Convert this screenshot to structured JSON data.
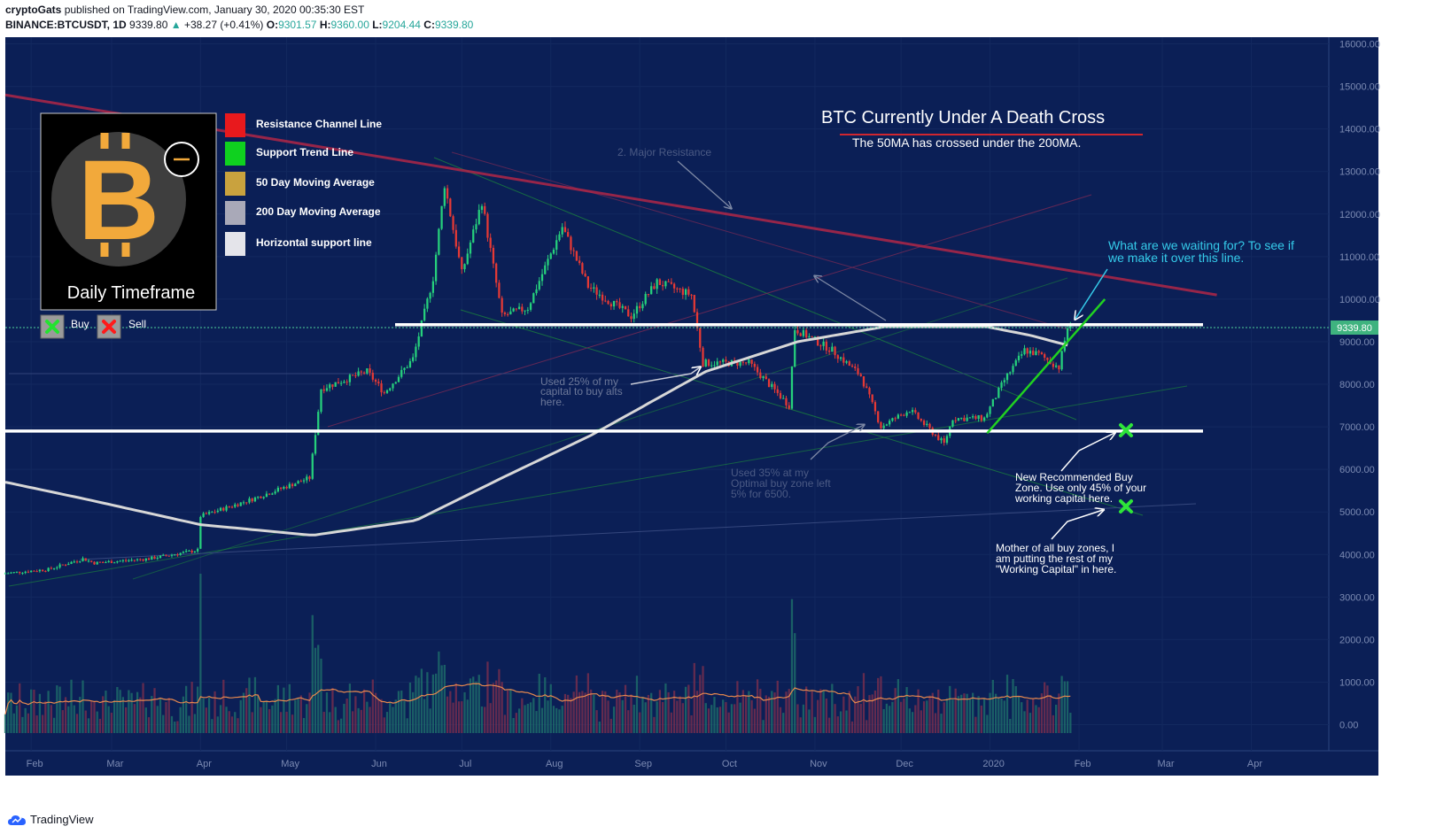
{
  "header": {
    "author": "cryptoGats",
    "published": "published on TradingView.com, January 30, 2020 00:35:30 EST",
    "symbol": "BINANCE:BTCUSDT, 1D",
    "last": "9339.80",
    "change": "+38.27 (+0.41%)",
    "o_label": "O:",
    "o": "9301.57",
    "h_label": "H:",
    "h": "9360.00",
    "l_label": "L:",
    "l": "9204.44",
    "c_label": "C:",
    "c": "9339.80"
  },
  "footer": {
    "brand": "TradingView"
  },
  "colors": {
    "background": "#0b1f56",
    "up": "#26d07c",
    "down": "#e53935",
    "ma50": "#c8a03a",
    "ma200": "#d8d8d8",
    "resistance": "#c0284a",
    "support": "#22cc22"
  },
  "legend_box": {
    "timeframe": "Daily Timeframe",
    "buy": "Buy",
    "sell": "Sell",
    "items": [
      {
        "label": "Resistance Channel Line",
        "color": "#e8191d"
      },
      {
        "label": "Support Trend Line",
        "color": "#0fd11f"
      },
      {
        "label": "50 Day Moving Average",
        "color": "#c9a23e"
      },
      {
        "label": "200 Day Moving Average",
        "color": "#a9a9b8"
      },
      {
        "label": "Horizontal support line",
        "color": "#e4e4ea"
      }
    ]
  },
  "annotations": {
    "title": "BTC Currently Under A Death Cross",
    "subtitle": "The 50MA has crossed under the 200MA.",
    "major_resistance": "2. Major Resistance",
    "waiting_1": "What are we waiting for? To see if",
    "waiting_2": "we make it over this line.",
    "used25_1": "Used 25% of my",
    "used25_2": "capital to buy alts",
    "used25_3": "here.",
    "used35_1": "Used 35% at my",
    "used35_2": "Optimal buy zone left",
    "used35_3": "5% for 6500.",
    "newzone_1": "New Recommended Buy",
    "newzone_2": "Zone. Use only 45% of your",
    "newzone_3": "working capital here.",
    "mother_1": "Mother of all buy zones, I",
    "mother_2": "am putting the rest of my",
    "mother_3": "\"Working Capital\" in here."
  },
  "chart_data": {
    "type": "candlestick",
    "symbol": "BINANCE:BTCUSDT",
    "interval": "1D",
    "price_axis_ticks": [
      "16000.00",
      "15000.00",
      "14000.00",
      "13000.00",
      "12000.00",
      "11000.00",
      "10000.00",
      "9000.00",
      "8000.00",
      "7000.00",
      "6000.00",
      "5000.00",
      "4000.00",
      "3000.00",
      "2000.00",
      "1000.00",
      "0.00"
    ],
    "price_label": "9339.80",
    "ylim": [
      -600,
      16600
    ],
    "x_ticks": [
      "Feb",
      "Mar",
      "Apr",
      "May",
      "Jun",
      "Jul",
      "Aug",
      "Sep",
      "Oct",
      "Nov",
      "Dec",
      "2020",
      "Feb",
      "Mar",
      "Apr"
    ],
    "x_tick_dates": [
      "2019-02-01",
      "2019-03-01",
      "2019-04-01",
      "2019-05-01",
      "2019-06-01",
      "2019-07-01",
      "2019-08-01",
      "2019-09-01",
      "2019-10-01",
      "2019-11-01",
      "2019-12-01",
      "2020-01-01",
      "2020-02-01",
      "2020-03-01",
      "2020-04-01"
    ],
    "x_range": [
      "2019-01-23",
      "2020-04-28"
    ],
    "price_path": [
      [
        "2019-01-23",
        3550
      ],
      [
        "2019-02-08",
        3650
      ],
      [
        "2019-02-20",
        3900
      ],
      [
        "2019-02-24",
        3800
      ],
      [
        "2019-03-15",
        3900
      ],
      [
        "2019-04-01",
        4100
      ],
      [
        "2019-04-02",
        4900
      ],
      [
        "2019-04-20",
        5300
      ],
      [
        "2019-05-10",
        5800
      ],
      [
        "2019-05-14",
        7900
      ],
      [
        "2019-05-30",
        8300
      ],
      [
        "2019-06-05",
        7800
      ],
      [
        "2019-06-15",
        8600
      ],
      [
        "2019-06-22",
        10500
      ],
      [
        "2019-06-26",
        12700
      ],
      [
        "2019-07-02",
        10600
      ],
      [
        "2019-07-09",
        12300
      ],
      [
        "2019-07-16",
        9600
      ],
      [
        "2019-07-25",
        9800
      ],
      [
        "2019-08-06",
        11700
      ],
      [
        "2019-08-15",
        10300
      ],
      [
        "2019-08-30",
        9600
      ],
      [
        "2019-09-08",
        10400
      ],
      [
        "2019-09-20",
        10100
      ],
      [
        "2019-09-24",
        8500
      ],
      [
        "2019-10-10",
        8500
      ],
      [
        "2019-10-24",
        7500
      ],
      [
        "2019-10-26",
        9300
      ],
      [
        "2019-11-08",
        8800
      ],
      [
        "2019-11-18",
        8200
      ],
      [
        "2019-11-25",
        7000
      ],
      [
        "2019-12-05",
        7400
      ],
      [
        "2019-12-17",
        6600
      ],
      [
        "2019-12-20",
        7200
      ],
      [
        "2019-12-31",
        7200
      ],
      [
        "2020-01-07",
        8100
      ],
      [
        "2020-01-14",
        8800
      ],
      [
        "2020-01-19",
        8700
      ],
      [
        "2020-01-26",
        8400
      ],
      [
        "2020-01-29",
        9340
      ]
    ],
    "ma200_path": [
      [
        "2019-01-23",
        5700
      ],
      [
        "2019-02-20",
        5300
      ],
      [
        "2019-04-01",
        4700
      ],
      [
        "2019-05-10",
        4450
      ],
      [
        "2019-06-15",
        4800
      ],
      [
        "2019-07-15",
        5800
      ],
      [
        "2019-08-15",
        6800
      ],
      [
        "2019-09-24",
        8300
      ],
      [
        "2019-10-26",
        9000
      ],
      [
        "2019-11-25",
        9350
      ],
      [
        "2019-12-31",
        9350
      ],
      [
        "2020-01-15",
        9150
      ],
      [
        "2020-01-29",
        8900
      ]
    ],
    "horizontal_lines": [
      9400,
      6900
    ],
    "resistance_line": [
      [
        "2019-01-23",
        14800
      ],
      [
        "2020-03-20",
        10100
      ]
    ],
    "support_line": [
      [
        "2019-12-31",
        6850
      ],
      [
        "2020-02-10",
        10000
      ]
    ],
    "volume_note": "volume bars with moving average at bottom"
  }
}
